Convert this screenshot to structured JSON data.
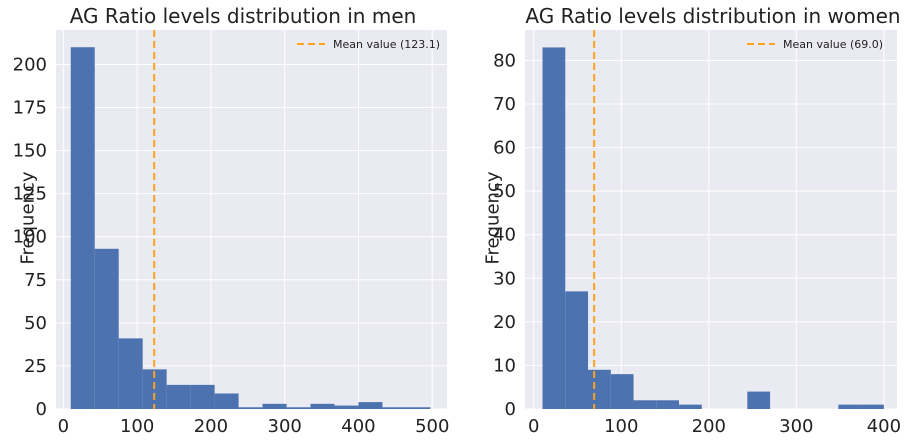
{
  "chart_data": [
    {
      "type": "bar",
      "title": "AG Ratio levels distribution in men",
      "xlabel": "",
      "ylabel": "Frequency",
      "xlim": [
        -10,
        520
      ],
      "ylim": [
        0,
        220
      ],
      "xticks": [
        0,
        100,
        200,
        300,
        400,
        500
      ],
      "yticks": [
        0,
        25,
        50,
        75,
        100,
        125,
        150,
        175,
        200
      ],
      "bin_edges": [
        10,
        42.5,
        75,
        107.5,
        140,
        172.5,
        205,
        237.5,
        270,
        302.5,
        335,
        367.5,
        400,
        432.5,
        465,
        497.5
      ],
      "values": [
        210,
        93,
        41,
        23,
        14,
        14,
        9,
        1,
        3,
        1,
        3,
        2,
        4,
        1,
        1
      ],
      "series_color": "#4c72b0",
      "grid": true,
      "legend": {
        "placement": "top-right",
        "entries": [
          {
            "label": "Mean value (123.1)",
            "color": "#ffa21e",
            "style": "dashed",
            "x": 123.1
          }
        ]
      }
    },
    {
      "type": "bar",
      "title": "AG Ratio levels distribution in women",
      "xlabel": "",
      "ylabel": "Frequency",
      "xlim": [
        -10,
        415
      ],
      "ylim": [
        0,
        87
      ],
      "xticks": [
        0,
        100,
        200,
        300,
        400
      ],
      "yticks": [
        0,
        10,
        20,
        30,
        40,
        50,
        60,
        70,
        80
      ],
      "bin_edges": [
        10,
        36,
        62,
        88,
        114,
        140,
        166,
        192,
        218,
        244,
        270,
        296,
        322,
        348,
        374,
        400
      ],
      "values": [
        83,
        27,
        9,
        8,
        2,
        2,
        1,
        0,
        0,
        4,
        0,
        0,
        0,
        1,
        1
      ],
      "series_color": "#4c72b0",
      "grid": true,
      "legend": {
        "placement": "top-right",
        "entries": [
          {
            "label": "Mean value (69.0)",
            "color": "#ffa21e",
            "style": "dashed",
            "x": 69.0
          }
        ]
      }
    }
  ]
}
